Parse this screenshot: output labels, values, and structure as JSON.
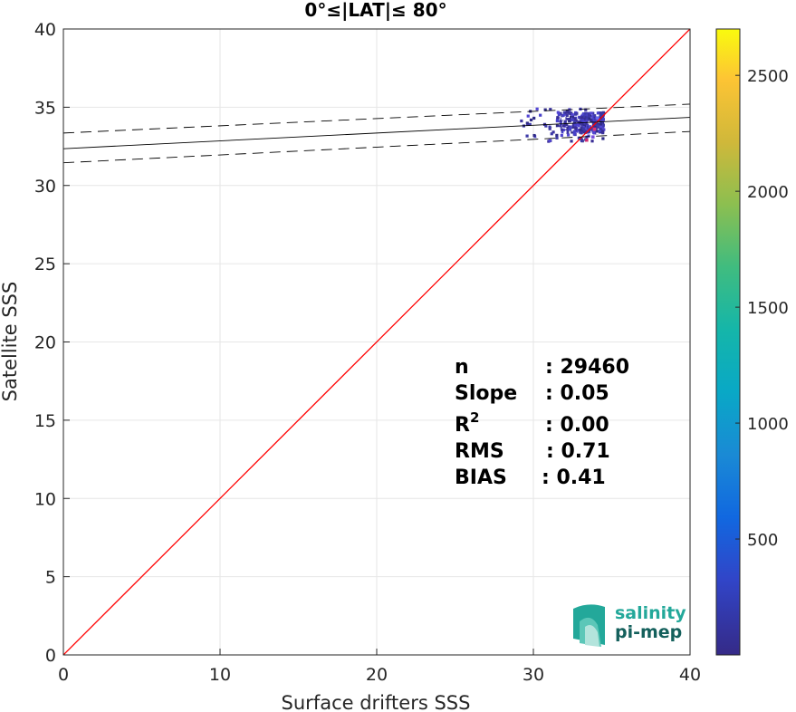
{
  "chart_data": {
    "type": "scatter",
    "title": "0°≤|LAT|≤ 80°",
    "xlabel": "Surface drifters SSS",
    "ylabel": "Satellite SSS",
    "xlim": [
      0,
      40
    ],
    "ylim": [
      0,
      40
    ],
    "xticks": [
      "0",
      "10",
      "20",
      "30",
      "40"
    ],
    "yticks": [
      "0",
      "5",
      "10",
      "15",
      "20",
      "25",
      "30",
      "35",
      "40"
    ],
    "grid": true,
    "identity_line": {
      "x": [
        0,
        40
      ],
      "y": [
        0,
        40
      ],
      "color": "#ff0000"
    },
    "regression_line": {
      "x": [
        0,
        40
      ],
      "y": [
        32.35,
        34.35
      ],
      "color": "#000000"
    },
    "confidence_lines": [
      {
        "x": [
          0,
          40
        ],
        "y": [
          33.35,
          35.2
        ]
      },
      {
        "x": [
          0,
          40
        ],
        "y": [
          31.45,
          33.45
        ]
      }
    ],
    "density_cloud": {
      "x_range": [
        29.2,
        34.5
      ],
      "y_range": [
        32.8,
        34.9
      ],
      "core": {
        "x": 33.7,
        "y": 34.0
      }
    },
    "colorbar": {
      "range": [
        0,
        2700
      ],
      "ticks": [
        "500",
        "1000",
        "1500",
        "2000",
        "2500"
      ],
      "colormap": "parula"
    },
    "stats": [
      {
        "label": "n",
        "value": ": 29460"
      },
      {
        "label": "Slope",
        "value": ": 0.05"
      },
      {
        "label": "R",
        "sup": "2",
        "value": ": 0.00"
      },
      {
        "label": "RMS",
        "value": ": 0.71"
      },
      {
        "label": "BIAS",
        "value": ": 0.41"
      }
    ]
  },
  "logo": {
    "line1": "salinity",
    "line2": "pi-mep"
  }
}
